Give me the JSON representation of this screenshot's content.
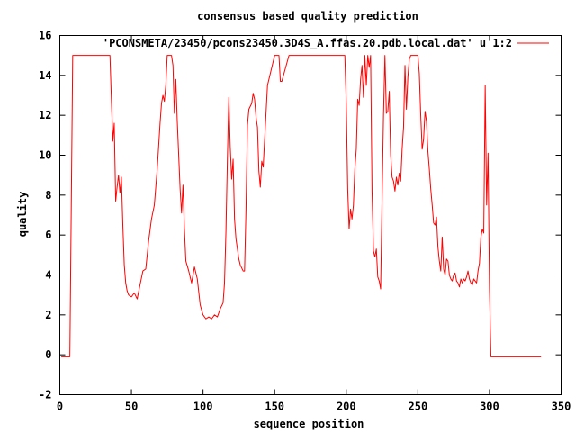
{
  "chart_data": {
    "type": "line",
    "title": "consensus based quality prediction",
    "xlabel": "sequence position",
    "ylabel": "quality",
    "xlim": [
      0,
      350
    ],
    "ylim": [
      -2,
      16
    ],
    "xticks": [
      0,
      50,
      100,
      150,
      200,
      250,
      300,
      350
    ],
    "yticks": [
      -2,
      0,
      2,
      4,
      6,
      8,
      10,
      12,
      14,
      16
    ],
    "grid": false,
    "legend_position": "top-right",
    "series": [
      {
        "name": "'PCONSMETA/23450/pcons23450.3D4S_A.ffas.20.pdb.local.dat' u 1:2",
        "color": "#ff0000",
        "x": [
          1,
          7,
          8,
          9,
          10,
          15,
          20,
          25,
          30,
          35,
          36,
          37,
          38,
          39,
          40,
          41,
          42,
          43,
          44,
          45,
          46,
          47,
          48,
          50,
          52,
          54,
          56,
          58,
          60,
          62,
          64,
          66,
          68,
          70,
          71,
          72,
          73,
          74,
          75,
          76,
          77,
          78,
          79,
          80,
          81,
          82,
          84,
          85,
          86,
          87,
          88,
          90,
          92,
          94,
          96,
          98,
          100,
          102,
          104,
          106,
          108,
          110,
          112,
          114,
          115,
          116,
          117,
          118,
          119,
          120,
          121,
          122,
          123,
          124,
          125,
          126,
          128,
          129,
          130,
          131,
          132,
          134,
          135,
          136,
          137,
          138,
          139,
          140,
          141,
          142,
          145,
          150,
          151,
          152,
          153,
          154,
          155,
          160,
          170,
          180,
          190,
          198,
          199,
          200,
          201,
          202,
          203,
          204,
          205,
          206,
          207,
          208,
          209,
          210,
          211,
          212,
          213,
          214,
          215,
          216,
          217,
          218,
          219,
          220,
          221,
          222,
          223,
          224,
          225,
          226,
          227,
          228,
          229,
          230,
          231,
          232,
          233,
          234,
          235,
          236,
          237,
          238,
          239,
          240,
          241,
          242,
          243,
          244,
          245,
          246,
          247,
          248,
          249,
          250,
          251,
          252,
          253,
          254,
          255,
          256,
          257,
          258,
          259,
          260,
          261,
          262,
          263,
          264,
          265,
          266,
          267,
          268,
          269,
          270,
          271,
          272,
          273,
          274,
          275,
          276,
          277,
          278,
          279,
          280,
          281,
          282,
          283,
          284,
          285,
          286,
          287,
          288,
          289,
          290,
          291,
          292,
          293,
          294,
          295,
          296,
          297,
          298,
          299,
          300,
          301,
          310,
          320,
          330,
          336
        ],
        "y": [
          -0.1,
          -0.1,
          7.5,
          15,
          15,
          15,
          15,
          15,
          15,
          15,
          12.8,
          10.7,
          11.6,
          7.7,
          8.4,
          9,
          8.1,
          8.9,
          6.5,
          4.5,
          3.6,
          3.2,
          3,
          2.9,
          3.1,
          2.8,
          3.5,
          4.2,
          4.3,
          5.7,
          6.8,
          7.5,
          9.3,
          11.6,
          12.6,
          13,
          12.7,
          13.5,
          15,
          15,
          15,
          15,
          14.5,
          12.1,
          13.8,
          11.7,
          8.3,
          7.1,
          8.5,
          6.3,
          4.7,
          4.2,
          3.6,
          4.4,
          3.8,
          2.5,
          2,
          1.8,
          1.9,
          1.8,
          2,
          1.9,
          2.3,
          2.6,
          3.6,
          6.2,
          9.8,
          12.9,
          10.4,
          8.8,
          9.8,
          6.8,
          5.8,
          5.3,
          4.8,
          4.5,
          4.2,
          4.2,
          7.3,
          11.5,
          12.3,
          12.6,
          13.1,
          12.8,
          11.9,
          11.4,
          9.2,
          8.4,
          9.7,
          9.4,
          13.5,
          15,
          15,
          15,
          15,
          13.7,
          13.7,
          15,
          15,
          15,
          15,
          15,
          15,
          12.6,
          8.3,
          6.3,
          7.3,
          6.8,
          7.5,
          9.3,
          10.3,
          12.8,
          12.5,
          13.8,
          14.5,
          12.9,
          15,
          13.5,
          15,
          14.4,
          15,
          8.2,
          5.2,
          4.9,
          5.3,
          3.9,
          3.7,
          3.3,
          7.8,
          12,
          15,
          12.1,
          12.2,
          13.2,
          10,
          8.9,
          8.7,
          8.2,
          8.9,
          8.5,
          9.1,
          8.7,
          10.3,
          11.4,
          14.5,
          12.3,
          13.9,
          14.8,
          15,
          15,
          15,
          15,
          15,
          15,
          14.1,
          12,
          10.3,
          10.8,
          12.2,
          11.7,
          10.2,
          9.3,
          8.3,
          7.5,
          6.6,
          6.5,
          6.9,
          5.4,
          4.7,
          4.2,
          5.9,
          4.3,
          4,
          4.8,
          4.7,
          4,
          3.8,
          3.7,
          4,
          4.1,
          3.7,
          3.6,
          3.4,
          3.8,
          3.6,
          3.8,
          3.7,
          3.9,
          4.2,
          3.8,
          3.6,
          3.5,
          3.8,
          3.7,
          3.6,
          4.2,
          4.6,
          5.9,
          6.3,
          6.1,
          13.5,
          7.5,
          10.1,
          3.3,
          -0.1,
          -0.1,
          -0.1,
          -0.1,
          -0.1
        ]
      }
    ]
  }
}
